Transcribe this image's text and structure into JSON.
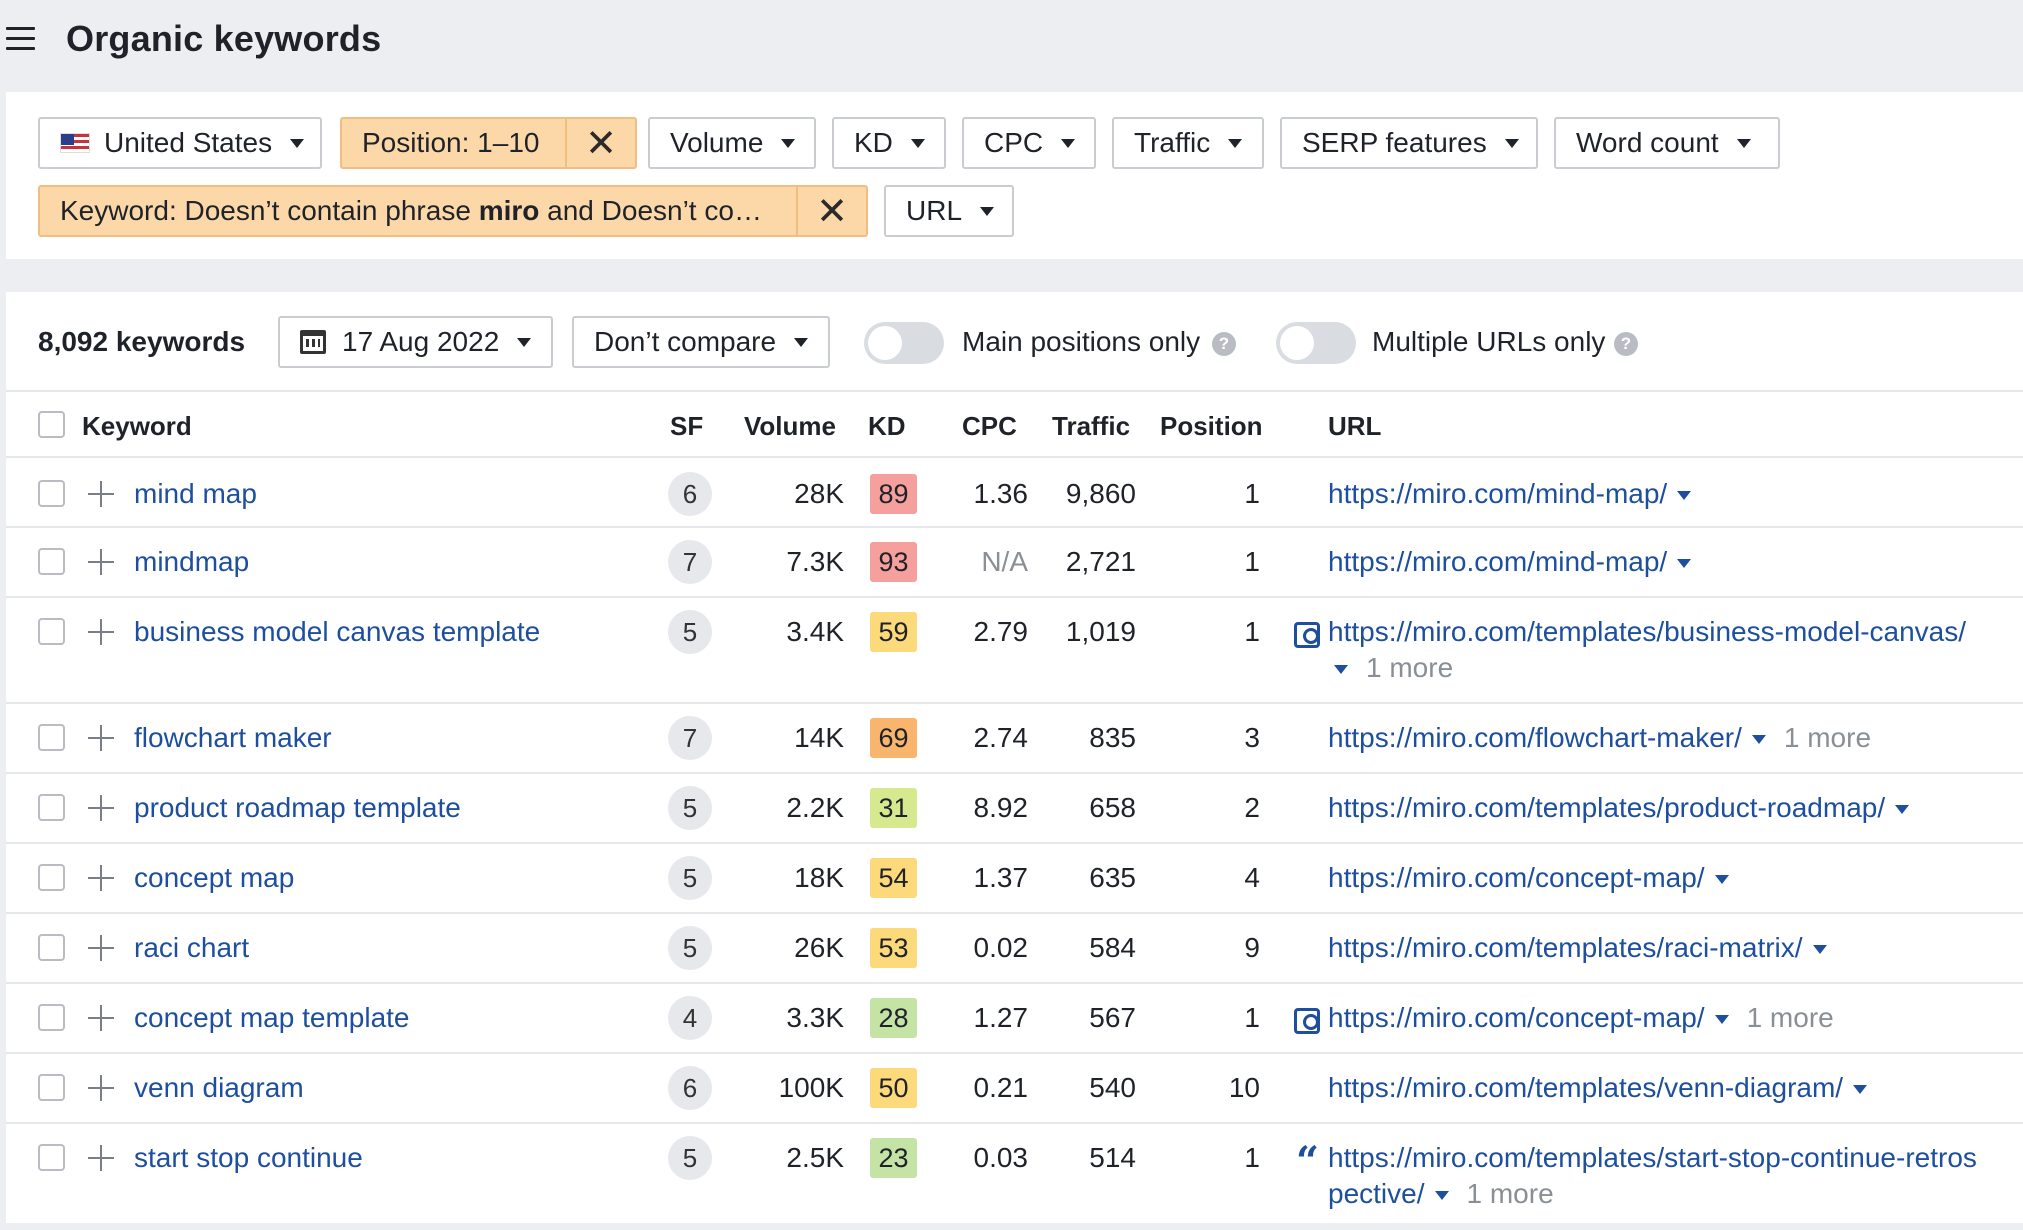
{
  "header": {
    "title": "Organic keywords"
  },
  "filters": {
    "country": "United States",
    "position": "Position: 1–10",
    "volume": "Volume",
    "kd": "KD",
    "cpc": "CPC",
    "traffic": "Traffic",
    "serp_features": "SERP features",
    "word_count": "Word count",
    "keyword_prefix": "Keyword: Doesn’t contain phrase ",
    "keyword_bold": "miro",
    "keyword_suffix": " and Doesn’t co…",
    "url": "URL",
    "remove_glyph": "✕"
  },
  "toolbar": {
    "keyword_count": "8,092 keywords",
    "date": "17 Aug 2022",
    "compare": "Don’t compare",
    "main_positions": "Main positions only",
    "multiple_urls": "Multiple URLs only",
    "help_glyph": "?"
  },
  "columns": {
    "keyword": "Keyword",
    "sf": "SF",
    "volume": "Volume",
    "kd": "KD",
    "cpc": "CPC",
    "traffic": "Traffic",
    "position": "Position",
    "url": "URL"
  },
  "colors": {
    "kd_red": "#f6a09d",
    "kd_orange": "#f9b56d",
    "kd_yellow": "#fcd97a",
    "kd_lime": "#d7e98e",
    "kd_green": "#c5e3a5"
  },
  "rows": [
    {
      "keyword": "mind map",
      "sf": "6",
      "volume": "28K",
      "kd": "89",
      "cpc": "1.36",
      "traffic": "9,860",
      "position": "1",
      "url": "https://miro.com/mind-map/"
    },
    {
      "keyword": "mindmap",
      "sf": "7",
      "volume": "7.3K",
      "kd": "93",
      "cpc": "N/A",
      "traffic": "2,721",
      "position": "1",
      "url": "https://miro.com/mind-map/"
    },
    {
      "keyword": "business model canvas template",
      "sf": "5",
      "volume": "3.4K",
      "kd": "59",
      "cpc": "2.79",
      "traffic": "1,019",
      "position": "1",
      "url": "https://miro.com/templates/business-model-canvas/",
      "more": "1 more"
    },
    {
      "keyword": "flowchart maker",
      "sf": "7",
      "volume": "14K",
      "kd": "69",
      "cpc": "2.74",
      "traffic": "835",
      "position": "3",
      "url": "https://miro.com/flowchart-maker/",
      "more": "1 more"
    },
    {
      "keyword": "product roadmap template",
      "sf": "5",
      "volume": "2.2K",
      "kd": "31",
      "cpc": "8.92",
      "traffic": "658",
      "position": "2",
      "url": "https://miro.com/templates/product-roadmap/"
    },
    {
      "keyword": "concept map",
      "sf": "5",
      "volume": "18K",
      "kd": "54",
      "cpc": "1.37",
      "traffic": "635",
      "position": "4",
      "url": "https://miro.com/concept-map/"
    },
    {
      "keyword": "raci chart",
      "sf": "5",
      "volume": "26K",
      "kd": "53",
      "cpc": "0.02",
      "traffic": "584",
      "position": "9",
      "url": "https://miro.com/templates/raci-matrix/"
    },
    {
      "keyword": "concept map template",
      "sf": "4",
      "volume": "3.3K",
      "kd": "28",
      "cpc": "1.27",
      "traffic": "567",
      "position": "1",
      "url": "https://miro.com/concept-map/",
      "more": "1 more"
    },
    {
      "keyword": "venn diagram",
      "sf": "6",
      "volume": "100K",
      "kd": "50",
      "cpc": "0.21",
      "traffic": "540",
      "position": "10",
      "url": "https://miro.com/templates/venn-diagram/"
    },
    {
      "keyword": "start stop continue",
      "sf": "5",
      "volume": "2.5K",
      "kd": "23",
      "cpc": "0.03",
      "traffic": "514",
      "position": "1",
      "url": "https://miro.com/templates/start-stop-continue-retros",
      "url_cont": "pective/",
      "more": "1 more",
      "quote_glyph": "“"
    }
  ]
}
